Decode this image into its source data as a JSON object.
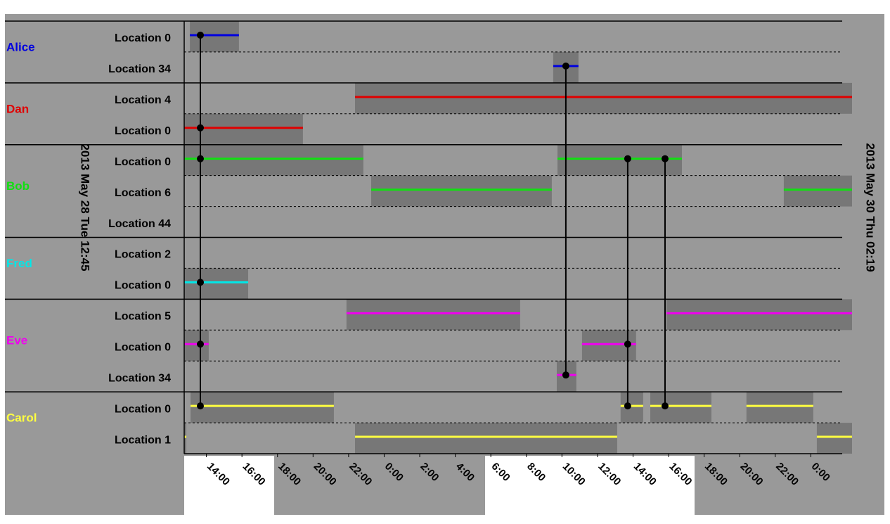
{
  "chart_data": {
    "type": "timeline",
    "start_label": "2013 May 28 Tue 12:45",
    "end_label": "2013 May 30 Thu 02:19",
    "xlim": [
      12.75,
      50.32
    ],
    "xticks": [
      {
        "value": 14,
        "label": "14:00"
      },
      {
        "value": 16,
        "label": "16:00"
      },
      {
        "value": 18,
        "label": "18:00"
      },
      {
        "value": 20,
        "label": "20:00"
      },
      {
        "value": 22,
        "label": "22:00"
      },
      {
        "value": 24,
        "label": "0:00"
      },
      {
        "value": 26,
        "label": "2:00"
      },
      {
        "value": 28,
        "label": "4:00"
      },
      {
        "value": 30,
        "label": "6:00"
      },
      {
        "value": 32,
        "label": "8:00"
      },
      {
        "value": 34,
        "label": "10:00"
      },
      {
        "value": 36,
        "label": "12:00"
      },
      {
        "value": 38,
        "label": "14:00"
      },
      {
        "value": 40,
        "label": "16:00"
      },
      {
        "value": 42,
        "label": "18:00"
      },
      {
        "value": 44,
        "label": "20:00"
      },
      {
        "value": 46,
        "label": "22:00"
      },
      {
        "value": 48,
        "label": "0:00"
      }
    ],
    "people": [
      {
        "name": "Alice",
        "color": "#0000e0",
        "locations": [
          {
            "label": "Location 0",
            "intervals": [
              [
                13.07,
                15.83
              ]
            ],
            "events": [
              13.66
            ]
          },
          {
            "label": "Location 34",
            "intervals": [
              [
                33.51,
                34.93
              ]
            ],
            "events": [
              34.22
            ]
          }
        ]
      },
      {
        "name": "Dan",
        "color": "#e00000",
        "locations": [
          {
            "label": "Location 4",
            "intervals": [
              [
                22.36,
                50.32
              ]
            ]
          },
          {
            "label": "Location 0",
            "intervals": [
              [
                12.75,
                19.43
              ]
            ],
            "events": [
              13.66
            ]
          }
        ]
      },
      {
        "name": "Bob",
        "color": "#10e010",
        "locations": [
          {
            "label": "Location 0",
            "intervals": [
              [
                12.75,
                22.83
              ],
              [
                33.75,
                40.75
              ]
            ],
            "events": [
              13.66,
              37.7,
              39.8
            ]
          },
          {
            "label": "Location 6",
            "intervals": [
              [
                23.27,
                33.43
              ],
              [
                46.48,
                50.32
              ]
            ]
          },
          {
            "label": "Location 44"
          }
        ]
      },
      {
        "name": "Fred",
        "color": "#00e8e8",
        "locations": [
          {
            "label": "Location 2"
          },
          {
            "label": "Location 0",
            "intervals": [
              [
                12.75,
                16.35
              ]
            ],
            "events": [
              13.66
            ]
          }
        ]
      },
      {
        "name": "Eve",
        "color": "#f000f0",
        "locations": [
          {
            "label": "Location 5",
            "intervals": [
              [
                21.88,
                31.65
              ],
              [
                39.88,
                50.32
              ]
            ]
          },
          {
            "label": "Location 0",
            "intervals": [
              [
                12.75,
                14.13
              ],
              [
                35.13,
                38.17
              ]
            ],
            "events": [
              13.66,
              37.7
            ]
          },
          {
            "label": "Location 34",
            "intervals": [
              [
                33.71,
                34.81
              ]
            ],
            "events": [
              34.22
            ]
          }
        ]
      },
      {
        "name": "Carol",
        "color": "#ffff40",
        "locations": [
          {
            "label": "Location 0",
            "intervals": [
              [
                13.11,
                21.17
              ],
              [
                37.3,
                38.57
              ],
              [
                38.97,
                42.41
              ],
              [
                44.38,
                48.14
              ]
            ],
            "events": [
              13.66,
              37.7,
              39.8
            ]
          },
          {
            "label": "Location 1",
            "intervals": [
              [
                12.75,
                12.87
              ],
              [
                22.36,
                37.11
              ],
              [
                48.34,
                50.32
              ]
            ]
          }
        ]
      }
    ]
  }
}
